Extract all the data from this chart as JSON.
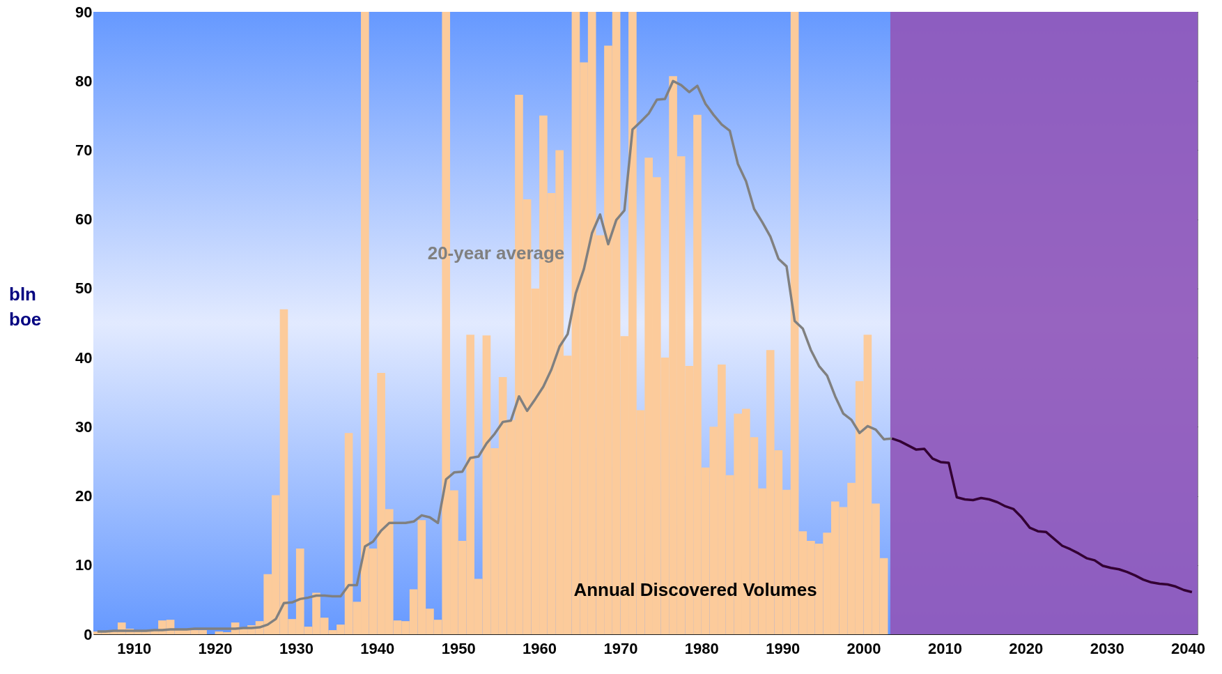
{
  "chart_data": {
    "type": "bar",
    "ylabel": "bln boe",
    "xlim": [
      1904.5,
      2040.7
    ],
    "xticks": [
      {
        "value": 1909.5,
        "label": "1910"
      },
      {
        "value": 1919.5,
        "label": "1920"
      },
      {
        "value": 1929.5,
        "label": "1930"
      },
      {
        "value": 1939.5,
        "label": "1940"
      },
      {
        "value": 1949.5,
        "label": "1950"
      },
      {
        "value": 1959.5,
        "label": "1960"
      },
      {
        "value": 1969.5,
        "label": "1970"
      },
      {
        "value": 1979.5,
        "label": "1980"
      },
      {
        "value": 1989.5,
        "label": "1990"
      },
      {
        "value": 1999.5,
        "label": "2000"
      },
      {
        "value": 2009.5,
        "label": "2010"
      },
      {
        "value": 2019.5,
        "label": "2020"
      },
      {
        "value": 2029.5,
        "label": "2030"
      },
      {
        "value": 2039.5,
        "label": "2040"
      }
    ],
    "ylim": [
      0,
      90
    ],
    "yticks": [
      0,
      10,
      20,
      30,
      40,
      50,
      60,
      70,
      80,
      90
    ],
    "grid": "y",
    "bands": [
      {
        "axis": "x",
        "from": 2002.8,
        "to": 2040.7,
        "color": "#9058bb"
      }
    ],
    "series": [
      {
        "name": "Annual Discovered Volumes",
        "color": "#fccb9b",
        "x": [
          1905,
          1906,
          1907,
          1908,
          1909,
          1910,
          1911,
          1912,
          1913,
          1914,
          1915,
          1916,
          1917,
          1918,
          1919,
          1920,
          1921,
          1922,
          1923,
          1924,
          1925,
          1926,
          1927,
          1928,
          1929,
          1930,
          1931,
          1932,
          1933,
          1934,
          1935,
          1936,
          1937,
          1938,
          1939,
          1940,
          1941,
          1942,
          1943,
          1944,
          1945,
          1946,
          1947,
          1948,
          1949,
          1950,
          1951,
          1952,
          1953,
          1954,
          1955,
          1956,
          1957,
          1958,
          1959,
          1960,
          1961,
          1962,
          1963,
          1964,
          1965,
          1966,
          1967,
          1968,
          1969,
          1970,
          1971,
          1972,
          1973,
          1974,
          1975,
          1976,
          1977,
          1978,
          1979,
          1980,
          1981,
          1982,
          1983,
          1984,
          1985,
          1986,
          1987,
          1988,
          1989,
          1990,
          1991,
          1992,
          1993,
          1994,
          1995,
          1996,
          1997,
          1998,
          1999,
          2000,
          2001,
          2002
        ],
        "values": [
          0.4,
          0.5,
          0.4,
          1.7,
          0.8,
          0.5,
          0.5,
          0.5,
          2.0,
          2.1,
          0.6,
          0.6,
          0.6,
          0.6,
          0,
          0.4,
          0.3,
          1.7,
          1.0,
          1.3,
          1.9,
          8.7,
          20.1,
          47.0,
          2.2,
          12.4,
          1.1,
          6.0,
          2.4,
          0.6,
          1.4,
          29.1,
          4.7,
          90,
          12.4,
          37.8,
          18.1,
          2.0,
          1.9,
          6.5,
          16.5,
          3.7,
          2.1,
          90,
          20.8,
          13.5,
          43.3,
          8.0,
          43.2,
          26.9,
          37.2,
          31,
          78.0,
          62.9,
          50.0,
          75.0,
          63.8,
          70.0,
          40.3,
          90,
          82.7,
          90,
          57.7,
          85.1,
          90,
          43.1,
          90,
          32.4,
          68.9,
          66.1,
          40.0,
          80.7,
          69.1,
          38.8,
          75.1,
          24.1,
          30.0,
          39.0,
          23.0,
          31.9,
          32.6,
          28.5,
          21.1,
          41.1,
          26.6,
          20.9,
          90,
          14.9,
          13.5,
          13.1,
          14.7,
          19.2,
          18.4,
          21.9,
          36.6,
          43.3,
          18.9,
          11.0
        ]
      },
      {
        "name": "20-year average",
        "type": "line",
        "color": "#808080",
        "x": [
          1905,
          1906,
          1907,
          1908,
          1909,
          1910,
          1911,
          1912,
          1913,
          1914,
          1915,
          1916,
          1917,
          1918,
          1919,
          1920,
          1921,
          1922,
          1923,
          1924,
          1925,
          1926,
          1927,
          1928,
          1929,
          1930,
          1931,
          1932,
          1933,
          1934,
          1935,
          1936,
          1937,
          1938,
          1939,
          1940,
          1941,
          1942,
          1943,
          1944,
          1945,
          1946,
          1947,
          1948,
          1949,
          1950,
          1951,
          1952,
          1953,
          1954,
          1955,
          1956,
          1957,
          1958,
          1959,
          1960,
          1961,
          1962,
          1963,
          1964,
          1965,
          1966,
          1967,
          1968,
          1969,
          1970,
          1971,
          1972,
          1973,
          1974,
          1975,
          1976,
          1977,
          1978,
          1979,
          1980,
          1981,
          1982,
          1983,
          1984,
          1985,
          1986,
          1987,
          1988,
          1989,
          1990,
          1991,
          1992,
          1993,
          1994,
          1995,
          1996,
          1997,
          1998,
          1999,
          2000,
          2001,
          2002,
          2003
        ],
        "values": [
          0.4,
          0.4,
          0.5,
          0.5,
          0.5,
          0.5,
          0.5,
          0.6,
          0.6,
          0.7,
          0.7,
          0.7,
          0.8,
          0.8,
          0.8,
          0.8,
          0.8,
          0.8,
          0.9,
          0.9,
          1.0,
          1.4,
          2.2,
          4.5,
          4.6,
          5.1,
          5.3,
          5.6,
          5.6,
          5.5,
          5.5,
          7.1,
          7.1,
          12.7,
          13.4,
          15.0,
          16.1,
          16.1,
          16.1,
          16.3,
          17.2,
          16.9,
          16.1,
          22.4,
          23.4,
          23.5,
          25.5,
          25.7,
          27.6,
          29.0,
          30.7,
          30.9,
          34.4,
          32.3,
          34.0,
          35.8,
          38.3,
          41.6,
          43.4,
          49.3,
          52.8,
          58.0,
          60.7,
          56.4,
          59.9,
          61.3,
          73.0,
          74.1,
          75.3,
          77.3,
          77.4,
          80.0,
          79.4,
          78.4,
          79.3,
          76.7,
          75.1,
          73.7,
          72.8,
          68.0,
          65.5,
          61.5,
          59.6,
          57.5,
          54.3,
          53.2,
          45.3,
          44.2,
          41.1,
          38.8,
          37.4,
          34.4,
          31.9,
          31.0,
          29.1,
          30.1,
          29.6,
          28.2,
          28.3
        ]
      },
      {
        "type": "line",
        "color": "#330033",
        "x": [
          2003,
          2004,
          2005,
          2006,
          2007,
          2008,
          2009,
          2010,
          2011,
          2012,
          2013,
          2014,
          2015,
          2016,
          2017,
          2018,
          2019,
          2020,
          2021,
          2022,
          2023,
          2024,
          2025,
          2026,
          2027,
          2028,
          2029,
          2030,
          2031,
          2032,
          2033,
          2034,
          2035,
          2036,
          2037,
          2038,
          2039,
          2040
        ],
        "values": [
          28.3,
          27.9,
          27.3,
          26.7,
          26.8,
          25.4,
          24.9,
          24.8,
          19.8,
          19.5,
          19.4,
          19.7,
          19.5,
          19.1,
          18.5,
          18.1,
          16.9,
          15.4,
          14.9,
          14.8,
          13.8,
          12.8,
          12.3,
          11.7,
          11.0,
          10.7,
          9.9,
          9.6,
          9.4,
          9.0,
          8.5,
          7.9,
          7.5,
          7.3,
          7.2,
          6.9,
          6.4,
          6.1
        ]
      }
    ]
  }
}
